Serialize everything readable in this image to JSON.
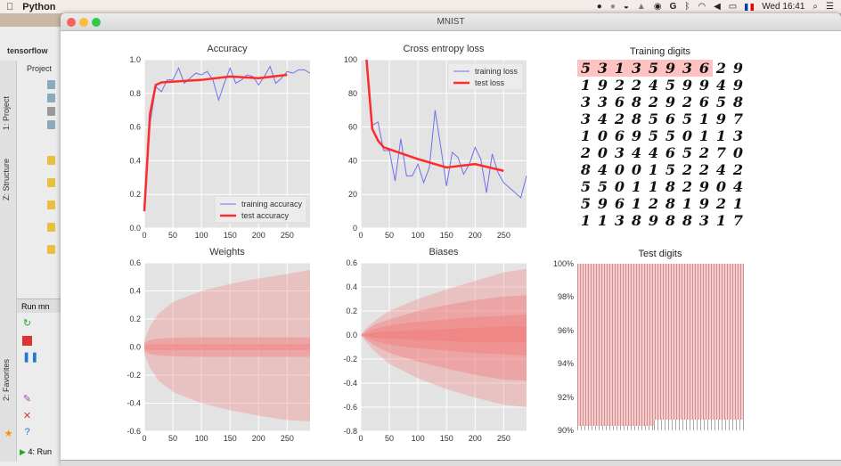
{
  "menubar": {
    "app": "Python",
    "clock": "Wed 16:41",
    "icons": [
      "apple-icon",
      "skype-icon",
      "dot-icon",
      "drive-icon",
      "drop-icon",
      "tor-icon",
      "google-icon",
      "bluetooth-icon",
      "wifi-icon",
      "volume-icon",
      "battery-icon",
      "flag-icon",
      "search-icon",
      "list-icon"
    ]
  },
  "ide": {
    "project": "tensorflow",
    "project_tab": "Project",
    "tabs": [
      "1: Project",
      "Z: Structure",
      "2: Favorites"
    ],
    "run_label": "Run",
    "run_config": "mn",
    "run_tab": "4: Run"
  },
  "window": {
    "title": "MNIST"
  },
  "colors": {
    "train": "#7070e8",
    "test": "#ff2a2a",
    "band": "#f08080",
    "panel": "#e3e3e3"
  },
  "chart_data": [
    {
      "type": "line",
      "title": "Accuracy",
      "xlim": [
        0,
        290
      ],
      "ylim": [
        0,
        1
      ],
      "xticks": [
        0,
        50,
        100,
        150,
        200,
        250
      ],
      "yticks": [
        0.0,
        0.2,
        0.4,
        0.6,
        0.8,
        1.0
      ],
      "ytick_labels": [
        "0.0",
        "0.2",
        "0.4",
        "0.6",
        "0.8",
        "1.0"
      ],
      "legend": "bottom-right",
      "series": [
        {
          "name": "training accuracy",
          "x": [
            0,
            10,
            20,
            30,
            40,
            50,
            60,
            70,
            80,
            90,
            100,
            110,
            120,
            130,
            140,
            150,
            160,
            170,
            180,
            190,
            200,
            210,
            220,
            230,
            240,
            250,
            260,
            270,
            280,
            290
          ],
          "y": [
            0.1,
            0.62,
            0.84,
            0.81,
            0.88,
            0.88,
            0.95,
            0.86,
            0.89,
            0.92,
            0.91,
            0.93,
            0.88,
            0.76,
            0.86,
            0.95,
            0.86,
            0.88,
            0.91,
            0.9,
            0.85,
            0.9,
            0.96,
            0.86,
            0.89,
            0.93,
            0.92,
            0.94,
            0.94,
            0.92
          ]
        },
        {
          "name": "test accuracy",
          "x": [
            0,
            10,
            20,
            30,
            50,
            100,
            150,
            200,
            250
          ],
          "y": [
            0.1,
            0.68,
            0.85,
            0.865,
            0.87,
            0.88,
            0.9,
            0.89,
            0.91
          ]
        }
      ]
    },
    {
      "type": "line",
      "title": "Cross entropy loss",
      "xlim": [
        0,
        290
      ],
      "ylim": [
        0,
        100
      ],
      "xticks": [
        0,
        50,
        100,
        150,
        200,
        250
      ],
      "yticks": [
        0,
        20,
        40,
        60,
        80,
        100
      ],
      "ytick_labels": [
        "0",
        "20",
        "40",
        "60",
        "80",
        "100"
      ],
      "legend": "top-right",
      "series": [
        {
          "name": "training loss",
          "x": [
            10,
            20,
            30,
            40,
            50,
            60,
            70,
            80,
            90,
            100,
            110,
            120,
            130,
            140,
            150,
            160,
            170,
            180,
            190,
            200,
            210,
            220,
            230,
            240,
            250,
            260,
            270,
            280,
            290
          ],
          "y": [
            100,
            61,
            63,
            46,
            46,
            28,
            53,
            31,
            31,
            38,
            27,
            36,
            70,
            48,
            25,
            45,
            42,
            32,
            38,
            48,
            41,
            21,
            44,
            33,
            27,
            24,
            21,
            18,
            31
          ]
        },
        {
          "name": "test loss",
          "x": [
            10,
            20,
            30,
            40,
            100,
            150,
            200,
            250
          ],
          "y": [
            100,
            59,
            52,
            48,
            41,
            36,
            38,
            34
          ]
        }
      ]
    },
    {
      "type": "area",
      "title": "Weights",
      "xlim": [
        0,
        290
      ],
      "ylim": [
        -0.6,
        0.6
      ],
      "xticks": [
        0,
        50,
        100,
        150,
        200,
        250
      ],
      "yticks": [
        -0.6,
        -0.4,
        -0.2,
        0.0,
        0.2,
        0.4,
        0.6
      ],
      "ytick_labels": [
        "-0.6",
        "-0.4",
        "-0.2",
        "0.0",
        "0.2",
        "0.4",
        "0.6"
      ],
      "x": [
        0,
        10,
        25,
        50,
        100,
        150,
        200,
        250,
        290
      ],
      "bands": [
        {
          "lower": [
            -0.05,
            -0.15,
            -0.24,
            -0.32,
            -0.4,
            -0.45,
            -0.49,
            -0.52,
            -0.53
          ],
          "upper": [
            0.05,
            0.15,
            0.24,
            0.32,
            0.4,
            0.45,
            0.49,
            0.52,
            0.55
          ]
        },
        {
          "lower": [
            -0.03,
            -0.05,
            -0.06,
            -0.065,
            -0.07,
            -0.07,
            -0.07,
            -0.07,
            -0.07
          ],
          "upper": [
            0.03,
            0.05,
            0.06,
            0.065,
            0.07,
            0.07,
            0.07,
            0.07,
            0.07
          ]
        },
        {
          "lower": [
            -0.01,
            -0.02,
            -0.02,
            -0.02,
            -0.02,
            -0.02,
            -0.02,
            -0.02,
            -0.02
          ],
          "upper": [
            0.01,
            0.02,
            0.02,
            0.02,
            0.02,
            0.02,
            0.02,
            0.02,
            0.02
          ]
        }
      ]
    },
    {
      "type": "area",
      "title": "Biases",
      "xlim": [
        0,
        290
      ],
      "ylim": [
        -0.8,
        0.6
      ],
      "xticks": [
        0,
        50,
        100,
        150,
        200,
        250
      ],
      "yticks": [
        -0.8,
        -0.6,
        -0.4,
        -0.2,
        0.0,
        0.2,
        0.4,
        0.6
      ],
      "ytick_labels": [
        "-0.8",
        "-0.6",
        "-0.4",
        "-0.2",
        "0.0",
        "0.2",
        "0.4",
        "0.6"
      ],
      "x": [
        0,
        10,
        25,
        50,
        100,
        150,
        200,
        250,
        290
      ],
      "bands": [
        {
          "lower": [
            0,
            -0.06,
            -0.14,
            -0.24,
            -0.36,
            -0.45,
            -0.52,
            -0.58,
            -0.6
          ],
          "upper": [
            0,
            0.06,
            0.12,
            0.2,
            0.3,
            0.38,
            0.45,
            0.52,
            0.55
          ]
        },
        {
          "lower": [
            0,
            -0.04,
            -0.09,
            -0.15,
            -0.22,
            -0.28,
            -0.33,
            -0.37,
            -0.38
          ],
          "upper": [
            0,
            0.04,
            0.09,
            0.13,
            0.2,
            0.25,
            0.29,
            0.32,
            0.33
          ]
        },
        {
          "lower": [
            0,
            -0.02,
            -0.05,
            -0.08,
            -0.11,
            -0.13,
            -0.15,
            -0.16,
            -0.17
          ],
          "upper": [
            0,
            0.02,
            0.05,
            0.08,
            0.11,
            0.13,
            0.15,
            0.16,
            0.17
          ]
        },
        {
          "lower": [
            0,
            -0.01,
            -0.02,
            -0.03,
            -0.04,
            -0.05,
            -0.06,
            -0.06,
            -0.06
          ],
          "upper": [
            0,
            0.01,
            0.02,
            0.03,
            0.04,
            0.05,
            0.06,
            0.07,
            0.07
          ]
        }
      ]
    }
  ],
  "training_digits": {
    "title": "Training digits",
    "rows": [
      [
        "5",
        "3",
        "1",
        "3",
        "5",
        "9",
        "3",
        "6",
        "2",
        "9"
      ],
      [
        "1",
        "9",
        "2",
        "2",
        "4",
        "5",
        "9",
        "9",
        "4",
        "9"
      ],
      [
        "3",
        "3",
        "6",
        "8",
        "2",
        "9",
        "2",
        "6",
        "5",
        "8"
      ],
      [
        "3",
        "4",
        "2",
        "8",
        "5",
        "6",
        "5",
        "1",
        "9",
        "7"
      ],
      [
        "1",
        "0",
        "6",
        "9",
        "5",
        "5",
        "0",
        "1",
        "1",
        "3"
      ],
      [
        "2",
        "0",
        "3",
        "4",
        "4",
        "6",
        "5",
        "2",
        "7",
        "0"
      ],
      [
        "8",
        "4",
        "0",
        "0",
        "1",
        "5",
        "2",
        "2",
        "4",
        "2"
      ],
      [
        "5",
        "5",
        "0",
        "1",
        "1",
        "8",
        "2",
        "9",
        "0",
        "4"
      ],
      [
        "5",
        "9",
        "6",
        "1",
        "2",
        "8",
        "1",
        "9",
        "2",
        "1"
      ],
      [
        "1",
        "1",
        "3",
        "8",
        "9",
        "8",
        "8",
        "3",
        "1",
        "7"
      ]
    ],
    "misclassified_count": 8
  },
  "test_digits": {
    "title": "Test digits",
    "ytick_labels": [
      "100%",
      "98%",
      "96%",
      "94%",
      "92%",
      "90%"
    ]
  }
}
